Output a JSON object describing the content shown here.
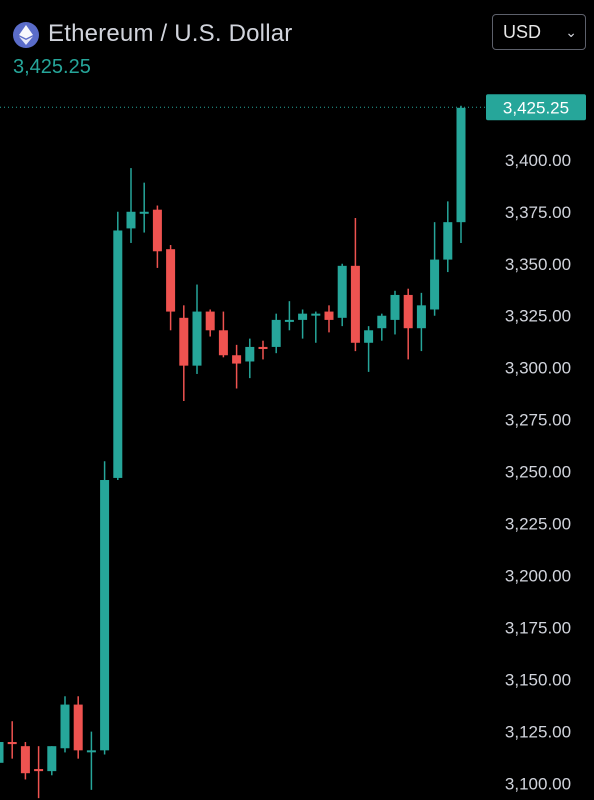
{
  "header": {
    "title": "Ethereum / U.S. Dollar",
    "last_price": "3,425.25",
    "currency": "USD",
    "icon": "ethereum-icon"
  },
  "colors": {
    "up": "#26a69a",
    "down": "#ef5350",
    "background": "#000000",
    "text": "#d1d4dc"
  },
  "chart_data": {
    "type": "candlestick",
    "title": "Ethereum / U.S. Dollar",
    "ylim": [
      3095,
      3435
    ],
    "y_ticks": [
      "3,400.00",
      "3,375.00",
      "3,350.00",
      "3,325.00",
      "3,300.00",
      "3,275.00",
      "3,250.00",
      "3,225.00",
      "3,200.00",
      "3,175.00",
      "3,150.00",
      "3,125.00",
      "3,100.00"
    ],
    "last_price_label": "3,425.25",
    "candles": [
      {
        "o": 3110,
        "h": 3124,
        "l": 3106,
        "c": 3120
      },
      {
        "o": 3120,
        "h": 3130,
        "l": 3112,
        "c": 3119
      },
      {
        "o": 3118,
        "h": 3120,
        "l": 3102,
        "c": 3105
      },
      {
        "o": 3107,
        "h": 3118,
        "l": 3093,
        "c": 3106
      },
      {
        "o": 3106,
        "h": 3118,
        "l": 3104,
        "c": 3118
      },
      {
        "o": 3117,
        "h": 3142,
        "l": 3115,
        "c": 3138
      },
      {
        "o": 3138,
        "h": 3142,
        "l": 3112,
        "c": 3116
      },
      {
        "o": 3116,
        "h": 3125,
        "l": 3097,
        "c": 3116
      },
      {
        "o": 3116,
        "h": 3255,
        "l": 3114,
        "c": 3246
      },
      {
        "o": 3247,
        "h": 3375,
        "l": 3246,
        "c": 3366
      },
      {
        "o": 3367,
        "h": 3396,
        "l": 3360,
        "c": 3375
      },
      {
        "o": 3375,
        "h": 3389,
        "l": 3365,
        "c": 3375
      },
      {
        "o": 3376,
        "h": 3378,
        "l": 3348,
        "c": 3356
      },
      {
        "o": 3357,
        "h": 3359,
        "l": 3318,
        "c": 3327
      },
      {
        "o": 3324,
        "h": 3330,
        "l": 3284,
        "c": 3301
      },
      {
        "o": 3301,
        "h": 3340,
        "l": 3297,
        "c": 3327
      },
      {
        "o": 3327,
        "h": 3328,
        "l": 3315,
        "c": 3318
      },
      {
        "o": 3318,
        "h": 3327,
        "l": 3305,
        "c": 3306
      },
      {
        "o": 3306,
        "h": 3311,
        "l": 3290,
        "c": 3302
      },
      {
        "o": 3303,
        "h": 3314,
        "l": 3295,
        "c": 3310
      },
      {
        "o": 3310,
        "h": 3313,
        "l": 3304,
        "c": 3309
      },
      {
        "o": 3310,
        "h": 3326,
        "l": 3307,
        "c": 3323
      },
      {
        "o": 3323,
        "h": 3332,
        "l": 3318,
        "c": 3323
      },
      {
        "o": 3323,
        "h": 3328,
        "l": 3314,
        "c": 3326
      },
      {
        "o": 3326,
        "h": 3327,
        "l": 3312,
        "c": 3326
      },
      {
        "o": 3327,
        "h": 3330,
        "l": 3317,
        "c": 3323
      },
      {
        "o": 3324,
        "h": 3350,
        "l": 3320,
        "c": 3349
      },
      {
        "o": 3349,
        "h": 3372,
        "l": 3308,
        "c": 3312
      },
      {
        "o": 3312,
        "h": 3320,
        "l": 3298,
        "c": 3318
      },
      {
        "o": 3319,
        "h": 3326,
        "l": 3313,
        "c": 3325
      },
      {
        "o": 3323,
        "h": 3337,
        "l": 3316,
        "c": 3335
      },
      {
        "o": 3335,
        "h": 3338,
        "l": 3304,
        "c": 3319
      },
      {
        "o": 3319,
        "h": 3336,
        "l": 3308,
        "c": 3330
      },
      {
        "o": 3328,
        "h": 3370,
        "l": 3325,
        "c": 3352
      },
      {
        "o": 3352,
        "h": 3380,
        "l": 3346,
        "c": 3370
      },
      {
        "o": 3370,
        "h": 3426,
        "l": 3360,
        "c": 3425
      }
    ]
  }
}
